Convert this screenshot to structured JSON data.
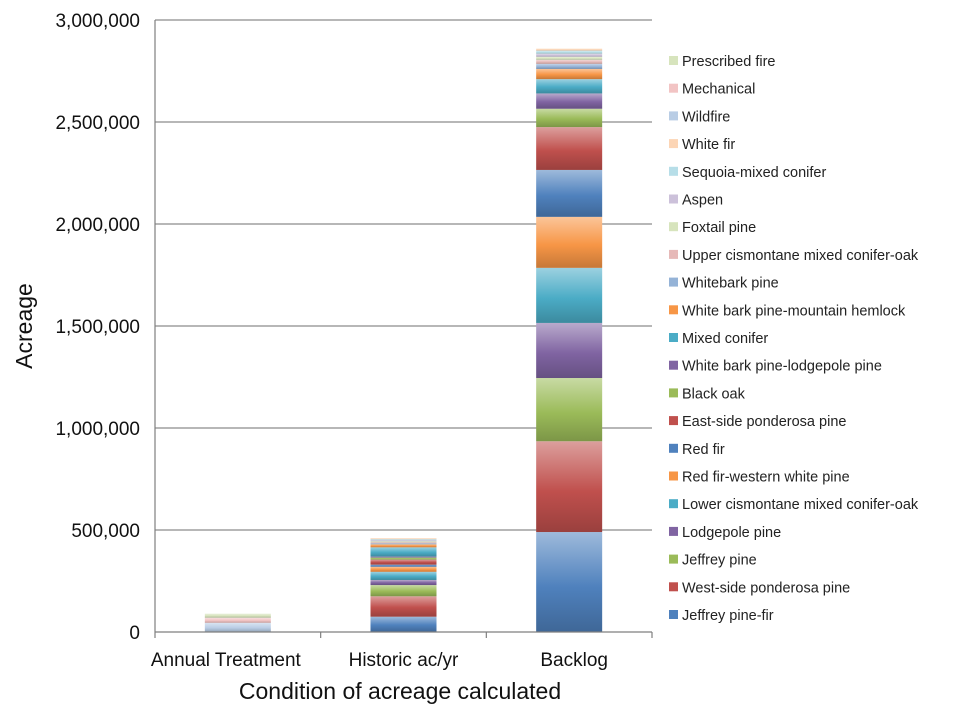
{
  "chart_data": {
    "type": "bar",
    "stacked": true,
    "title": "",
    "xlabel": "Condition of acreage calculated",
    "ylabel": "Acreage",
    "ylim": [
      0,
      3000000
    ],
    "yticks": [
      0,
      500000,
      1000000,
      1500000,
      2000000,
      2500000,
      3000000
    ],
    "ytick_labels": [
      "0",
      "500,000",
      "1,000,000",
      "1,500,000",
      "2,000,000",
      "2,500,000",
      "3,000,000"
    ],
    "grid": true,
    "legend_position": "right",
    "categories": [
      "Annual Treatment",
      "Historic ac/yr",
      "Backlog"
    ],
    "series": [
      {
        "name": "Jeffrey pine-fir",
        "color": "#4f81bd",
        "values": [
          0,
          75000,
          490000
        ]
      },
      {
        "name": "West-side ponderosa pine",
        "color": "#c0504d",
        "values": [
          0,
          100000,
          445000
        ]
      },
      {
        "name": "Jeffrey pine",
        "color": "#9bbb59",
        "values": [
          0,
          55000,
          310000
        ]
      },
      {
        "name": "Lodgepole pine",
        "color": "#8064a2",
        "values": [
          0,
          25000,
          270000
        ]
      },
      {
        "name": "Lower cismontane mixed conifer-oak",
        "color": "#4bacc6",
        "values": [
          0,
          40000,
          270000
        ]
      },
      {
        "name": "Red fir-western white pine",
        "color": "#f79646",
        "values": [
          0,
          25000,
          250000
        ]
      },
      {
        "name": "Red fir",
        "color": "#4f81bd",
        "values": [
          0,
          10000,
          230000
        ]
      },
      {
        "name": "East-side ponderosa pine",
        "color": "#c0504d",
        "values": [
          0,
          25000,
          210000
        ]
      },
      {
        "name": "Black oak",
        "color": "#9bbb59",
        "values": [
          0,
          10000,
          90000
        ]
      },
      {
        "name": "White bark pine-lodgepole pine",
        "color": "#8064a2",
        "values": [
          0,
          5000,
          75000
        ]
      },
      {
        "name": "Mixed conifer",
        "color": "#4bacc6",
        "values": [
          0,
          45000,
          70000
        ]
      },
      {
        "name": "White bark pine-mountain hemlock",
        "color": "#f79646",
        "values": [
          0,
          15000,
          50000
        ]
      },
      {
        "name": "Whitebark pine",
        "color": "#95b3d7",
        "values": [
          0,
          5000,
          25000
        ]
      },
      {
        "name": "Upper cismontane mixed conifer-oak",
        "color": "#e6b9b8",
        "values": [
          0,
          5000,
          20000
        ]
      },
      {
        "name": "Foxtail pine",
        "color": "#d7e4bd",
        "values": [
          0,
          5000,
          15000
        ]
      },
      {
        "name": "Aspen",
        "color": "#ccc1da",
        "values": [
          0,
          5000,
          15000
        ]
      },
      {
        "name": "Sequoia-mixed conifer",
        "color": "#b7dee8",
        "values": [
          0,
          5000,
          15000
        ]
      },
      {
        "name": "White fir",
        "color": "#fcd5b5",
        "values": [
          0,
          5000,
          10000
        ]
      },
      {
        "name": "Wildfire",
        "color": "#b9cde5",
        "values": [
          45000,
          0,
          0
        ]
      },
      {
        "name": "Mechanical",
        "color": "#f2c4c4",
        "values": [
          25000,
          0,
          0
        ]
      },
      {
        "name": "Prescribed fire",
        "color": "#d7e4bd",
        "values": [
          20000,
          0,
          0
        ]
      }
    ]
  }
}
